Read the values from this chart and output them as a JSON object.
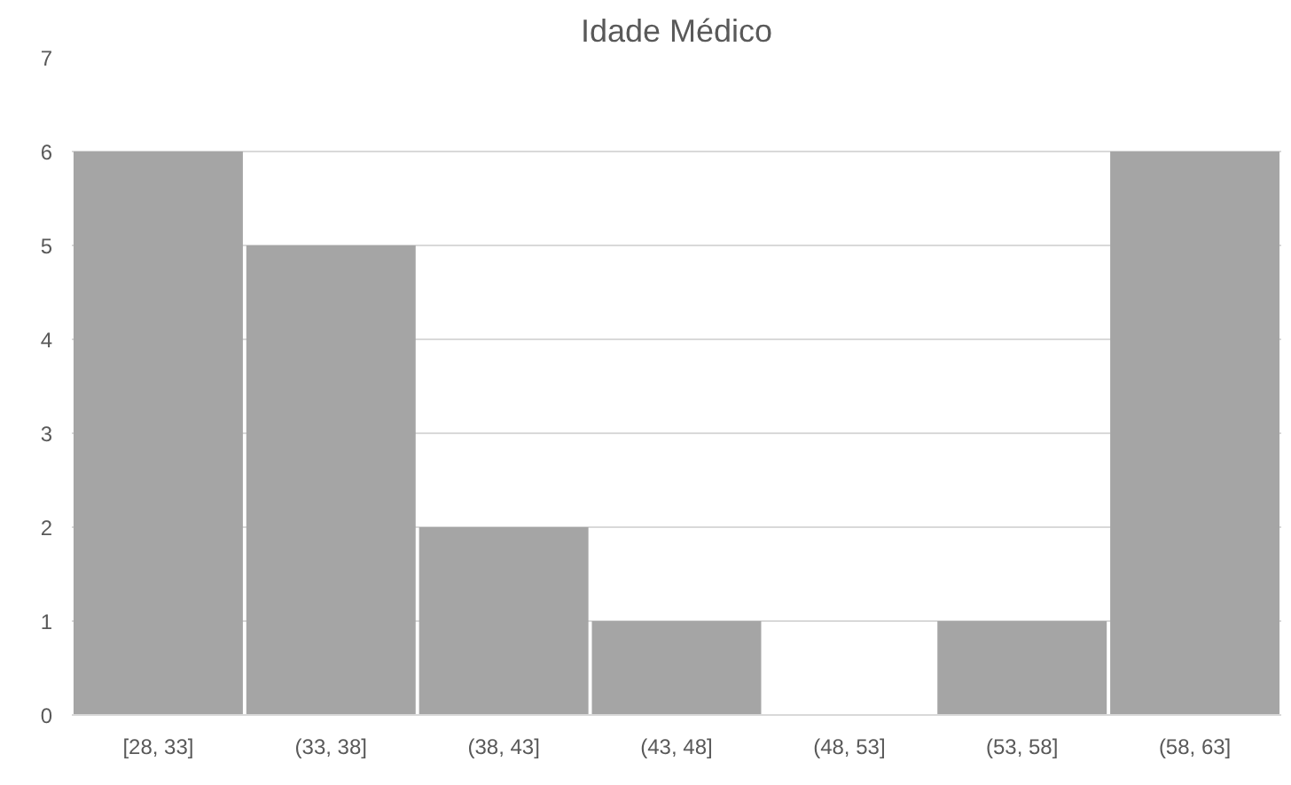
{
  "chart_data": {
    "type": "bar",
    "title": "Idade Médico",
    "categories": [
      "[28, 33]",
      "(33, 38]",
      "(38, 43]",
      "(43, 48]",
      "(48, 53]",
      "(53, 58]",
      "(58, 63]"
    ],
    "values": [
      6,
      5,
      2,
      1,
      0,
      1,
      6
    ],
    "color": "#a5a5a5",
    "ylim": [
      0,
      7
    ],
    "yticks": [
      0,
      1,
      2,
      3,
      4,
      5,
      6,
      7
    ],
    "grid": "y"
  }
}
